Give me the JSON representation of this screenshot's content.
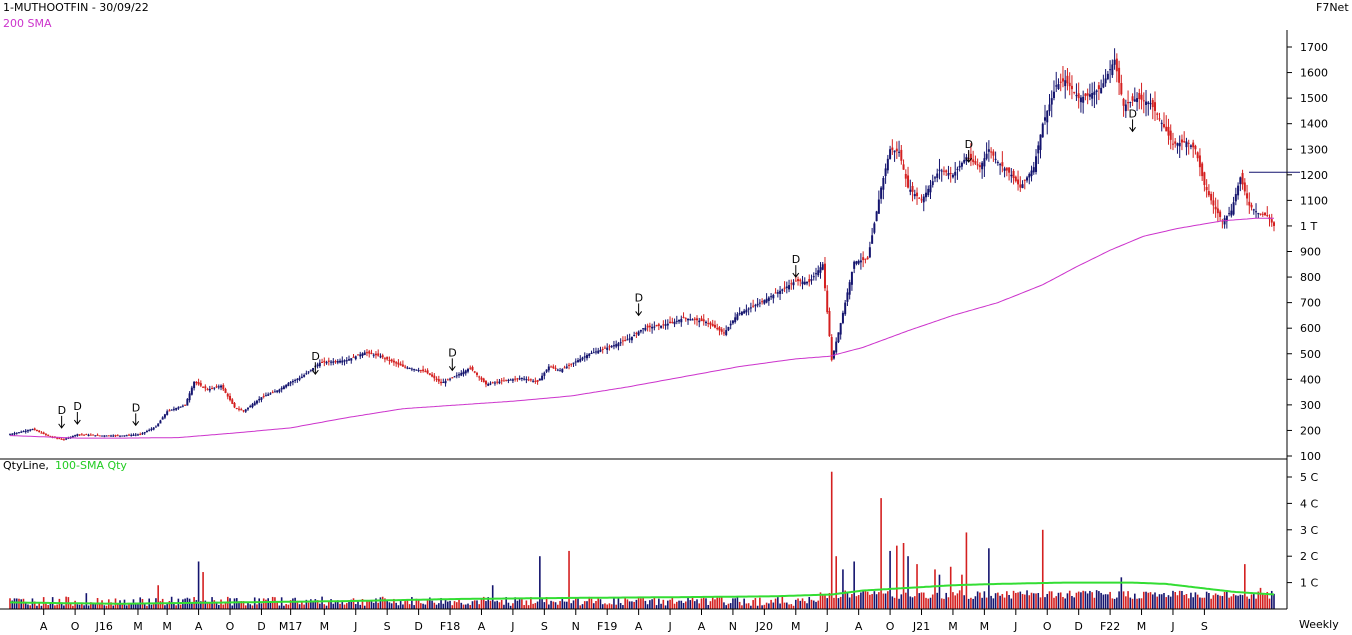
{
  "header": {
    "symbol_line": "1-MUTHOOTFIN - 30/09/22",
    "sma_label": "200 SMA",
    "vendor": "F7Net",
    "volume_label_main": "QtyLine,",
    "volume_label_sma": "100-SMA Qty",
    "timeframe": "Weekly"
  },
  "colors": {
    "up": "#14146e",
    "down": "#d42020",
    "sma_price": "#cc33cc",
    "sma_volume": "#33dd33",
    "axis": "#000000"
  },
  "chart_data": [
    {
      "type": "candlestick",
      "title": "1-MUTHOOTFIN - 30/09/22",
      "ylim": [
        100,
        1750
      ],
      "y_ticks": [
        {
          "value": 100,
          "label": "100"
        },
        {
          "value": 200,
          "label": "200"
        },
        {
          "value": 300,
          "label": "300"
        },
        {
          "value": 400,
          "label": "400"
        },
        {
          "value": 500,
          "label": "500"
        },
        {
          "value": 600,
          "label": "600"
        },
        {
          "value": 700,
          "label": "700"
        },
        {
          "value": 800,
          "label": "800"
        },
        {
          "value": 900,
          "label": "900"
        },
        {
          "value": 1000,
          "label": "1 T"
        },
        {
          "value": 1100,
          "label": "1100"
        },
        {
          "value": 1200,
          "label": "1200"
        },
        {
          "value": 1300,
          "label": "1300"
        },
        {
          "value": 1400,
          "label": "1400"
        },
        {
          "value": 1500,
          "label": "1500"
        },
        {
          "value": 1600,
          "label": "1600"
        },
        {
          "value": 1700,
          "label": "1700"
        }
      ],
      "price_anchors": [
        [
          0,
          185
        ],
        [
          10,
          205
        ],
        [
          18,
          175
        ],
        [
          24,
          165
        ],
        [
          30,
          185
        ],
        [
          40,
          180
        ],
        [
          50,
          180
        ],
        [
          58,
          185
        ],
        [
          65,
          215
        ],
        [
          70,
          275
        ],
        [
          78,
          300
        ],
        [
          82,
          390
        ],
        [
          88,
          360
        ],
        [
          94,
          375
        ],
        [
          100,
          290
        ],
        [
          104,
          275
        ],
        [
          112,
          330
        ],
        [
          120,
          360
        ],
        [
          124,
          385
        ],
        [
          130,
          410
        ],
        [
          138,
          465
        ],
        [
          150,
          475
        ],
        [
          158,
          505
        ],
        [
          165,
          490
        ],
        [
          175,
          450
        ],
        [
          185,
          430
        ],
        [
          192,
          385
        ],
        [
          200,
          420
        ],
        [
          205,
          445
        ],
        [
          212,
          380
        ],
        [
          220,
          395
        ],
        [
          228,
          405
        ],
        [
          235,
          390
        ],
        [
          240,
          450
        ],
        [
          245,
          435
        ],
        [
          258,
          500
        ],
        [
          268,
          530
        ],
        [
          276,
          560
        ],
        [
          282,
          600
        ],
        [
          290,
          610
        ],
        [
          296,
          625
        ],
        [
          300,
          640
        ],
        [
          310,
          625
        ],
        [
          318,
          580
        ],
        [
          324,
          655
        ],
        [
          332,
          690
        ],
        [
          340,
          730
        ],
        [
          350,
          785
        ],
        [
          356,
          780
        ],
        [
          362,
          850
        ],
        [
          366,
          475
        ],
        [
          370,
          620
        ],
        [
          376,
          860
        ],
        [
          382,
          870
        ],
        [
          388,
          1150
        ],
        [
          392,
          1300
        ],
        [
          396,
          1290
        ],
        [
          400,
          1150
        ],
        [
          406,
          1100
        ],
        [
          410,
          1160
        ],
        [
          414,
          1220
        ],
        [
          420,
          1200
        ],
        [
          426,
          1270
        ],
        [
          432,
          1230
        ],
        [
          436,
          1300
        ],
        [
          440,
          1250
        ],
        [
          446,
          1200
        ],
        [
          450,
          1150
        ],
        [
          456,
          1230
        ],
        [
          460,
          1400
        ],
        [
          466,
          1550
        ],
        [
          470,
          1570
        ],
        [
          476,
          1500
        ],
        [
          480,
          1510
        ],
        [
          486,
          1540
        ],
        [
          492,
          1650
        ],
        [
          496,
          1470
        ],
        [
          502,
          1500
        ],
        [
          508,
          1480
        ],
        [
          512,
          1420
        ],
        [
          518,
          1320
        ],
        [
          524,
          1330
        ],
        [
          528,
          1300
        ],
        [
          532,
          1160
        ],
        [
          536,
          1080
        ],
        [
          540,
          1020
        ],
        [
          544,
          1060
        ],
        [
          548,
          1190
        ],
        [
          552,
          1080
        ],
        [
          556,
          1050
        ],
        [
          560,
          1040
        ],
        [
          563,
          1000
        ]
      ],
      "sma_200": [
        [
          0,
          180
        ],
        [
          30,
          170
        ],
        [
          50,
          170
        ],
        [
          75,
          172
        ],
        [
          100,
          190
        ],
        [
          125,
          210
        ],
        [
          150,
          250
        ],
        [
          175,
          285
        ],
        [
          200,
          300
        ],
        [
          225,
          315
        ],
        [
          250,
          335
        ],
        [
          275,
          370
        ],
        [
          300,
          410
        ],
        [
          325,
          450
        ],
        [
          350,
          480
        ],
        [
          365,
          490
        ],
        [
          380,
          525
        ],
        [
          400,
          590
        ],
        [
          420,
          650
        ],
        [
          440,
          700
        ],
        [
          460,
          770
        ],
        [
          475,
          840
        ],
        [
          490,
          905
        ],
        [
          505,
          960
        ],
        [
          520,
          990
        ],
        [
          540,
          1020
        ],
        [
          555,
          1030
        ],
        [
          563,
          1030
        ]
      ],
      "last_high_marker": 1210,
      "dividend_markers": [
        {
          "label": "D",
          "index": 23,
          "price": 210
        },
        {
          "label": "D",
          "index": 30,
          "price": 225
        },
        {
          "label": "D",
          "index": 56,
          "price": 220
        },
        {
          "label": "D",
          "index": 136,
          "price": 420
        },
        {
          "label": "D",
          "index": 197,
          "price": 435
        },
        {
          "label": "D",
          "index": 280,
          "price": 650
        },
        {
          "label": "D",
          "index": 350,
          "price": 800
        },
        {
          "label": "D",
          "index": 427,
          "price": 1250
        },
        {
          "label": "D",
          "index": 500,
          "price": 1370
        }
      ]
    },
    {
      "type": "bar",
      "title": "QtyLine, 100-SMA Qty",
      "ylim": [
        0,
        5.3
      ],
      "y_ticks": [
        {
          "value": 1,
          "label": "1 C"
        },
        {
          "value": 2,
          "label": "2 C"
        },
        {
          "value": 3,
          "label": "3 C"
        },
        {
          "value": 4,
          "label": "4 C"
        },
        {
          "value": 5,
          "label": "5 C"
        }
      ],
      "spikes": [
        [
          34,
          0.6
        ],
        [
          66,
          0.9
        ],
        [
          84,
          1.8
        ],
        [
          86,
          1.4
        ],
        [
          215,
          0.9
        ],
        [
          236,
          2.0
        ],
        [
          249,
          2.2
        ],
        [
          366,
          5.2
        ],
        [
          368,
          2.0
        ],
        [
          371,
          1.5
        ],
        [
          376,
          1.8
        ],
        [
          388,
          4.2
        ],
        [
          392,
          2.2
        ],
        [
          395,
          2.4
        ],
        [
          398,
          2.5
        ],
        [
          400,
          2.0
        ],
        [
          404,
          1.7
        ],
        [
          412,
          1.5
        ],
        [
          414,
          1.3
        ],
        [
          419,
          1.6
        ],
        [
          424,
          1.3
        ],
        [
          426,
          2.9
        ],
        [
          436,
          2.3
        ],
        [
          460,
          3.0
        ],
        [
          495,
          1.2
        ],
        [
          550,
          1.7
        ],
        [
          557,
          0.8
        ]
      ],
      "sma_100": [
        [
          0,
          0.25
        ],
        [
          25,
          0.22
        ],
        [
          50,
          0.2
        ],
        [
          100,
          0.25
        ],
        [
          150,
          0.3
        ],
        [
          200,
          0.38
        ],
        [
          250,
          0.42
        ],
        [
          300,
          0.45
        ],
        [
          340,
          0.48
        ],
        [
          366,
          0.55
        ],
        [
          380,
          0.7
        ],
        [
          400,
          0.8
        ],
        [
          420,
          0.9
        ],
        [
          440,
          0.95
        ],
        [
          470,
          1.0
        ],
        [
          500,
          1.0
        ],
        [
          515,
          0.95
        ],
        [
          530,
          0.8
        ],
        [
          545,
          0.65
        ],
        [
          563,
          0.55
        ]
      ]
    }
  ],
  "x_axis": {
    "labels": [
      {
        "label": "A",
        "index": 15
      },
      {
        "label": "O",
        "index": 29
      },
      {
        "label": "J16",
        "index": 42
      },
      {
        "label": "M",
        "index": 57
      },
      {
        "label": "M",
        "index": 70
      },
      {
        "label": "A",
        "index": 84
      },
      {
        "label": "O",
        "index": 98
      },
      {
        "label": "D",
        "index": 112
      },
      {
        "label": "M17",
        "index": 125
      },
      {
        "label": "M",
        "index": 140
      },
      {
        "label": "J",
        "index": 154
      },
      {
        "label": "S",
        "index": 168
      },
      {
        "label": "D",
        "index": 182
      },
      {
        "label": "F18",
        "index": 196
      },
      {
        "label": "A",
        "index": 210
      },
      {
        "label": "J",
        "index": 224
      },
      {
        "label": "S",
        "index": 238
      },
      {
        "label": "N",
        "index": 252
      },
      {
        "label": "F19",
        "index": 266
      },
      {
        "label": "A",
        "index": 280
      },
      {
        "label": "J",
        "index": 294
      },
      {
        "label": "A",
        "index": 308
      },
      {
        "label": "N",
        "index": 322
      },
      {
        "label": "J20",
        "index": 336
      },
      {
        "label": "M",
        "index": 350
      },
      {
        "label": "J",
        "index": 364
      },
      {
        "label": "A",
        "index": 378
      },
      {
        "label": "O",
        "index": 392
      },
      {
        "label": "J21",
        "index": 406
      },
      {
        "label": "M",
        "index": 420
      },
      {
        "label": "M",
        "index": 434
      },
      {
        "label": "J",
        "index": 448
      },
      {
        "label": "O",
        "index": 462
      },
      {
        "label": "D",
        "index": 476
      },
      {
        "label": "F22",
        "index": 490
      },
      {
        "label": "M",
        "index": 504
      },
      {
        "label": "J",
        "index": 518
      },
      {
        "label": "S",
        "index": 532
      }
    ]
  }
}
